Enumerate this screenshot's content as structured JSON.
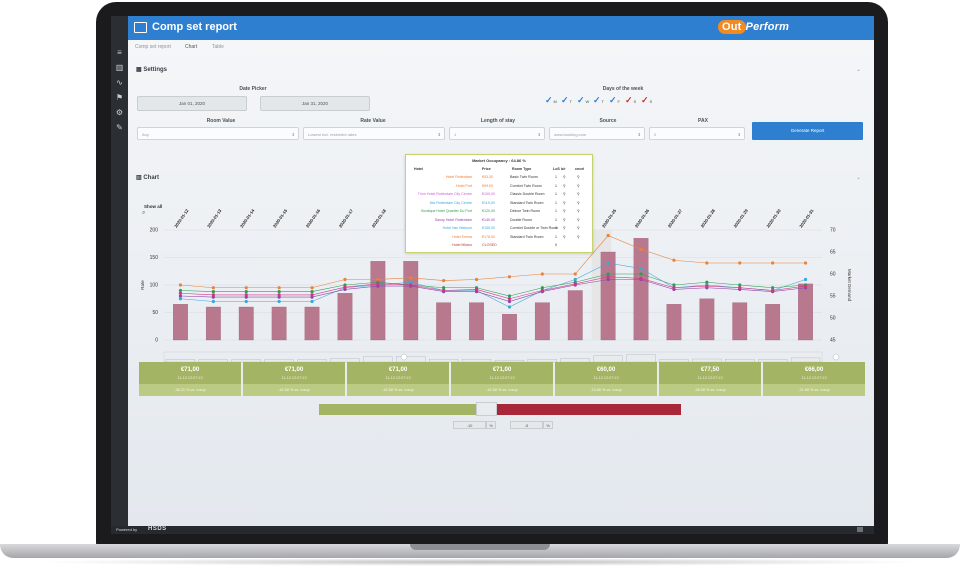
{
  "app": {
    "title": "Comp set report"
  },
  "tabs": [
    "Comp set report",
    "Chart",
    "Table"
  ],
  "settings": {
    "header": "Settings",
    "date_picker": {
      "label": "Date Picker",
      "from": "Jan 01, 2020",
      "to": "Jan 31, 2020"
    },
    "days_of_week": {
      "label": "Days of the week",
      "days": [
        {
          "letter": "M",
          "checked": true,
          "color": "#2f7fd1"
        },
        {
          "letter": "T",
          "checked": true,
          "color": "#2f7fd1"
        },
        {
          "letter": "W",
          "checked": true,
          "color": "#2f7fd1"
        },
        {
          "letter": "T",
          "checked": true,
          "color": "#2f7fd1"
        },
        {
          "letter": "F",
          "checked": true,
          "color": "#2f7fd1"
        },
        {
          "letter": "S",
          "checked": true,
          "color": "#c0392b"
        },
        {
          "letter": "S",
          "checked": true,
          "color": "#c0392b"
        }
      ]
    },
    "room_value": {
      "label": "Room Value",
      "value": "Any"
    },
    "rate_value": {
      "label": "Rate Value",
      "value": "Lowest incl. restricted rates"
    },
    "length_of_stay": {
      "label": "Length of stay",
      "value": "1"
    },
    "source": {
      "label": "Source",
      "value": "www.booking.com"
    },
    "pax": {
      "label": "PAX",
      "value": "2"
    },
    "generate_label": "Generate Report"
  },
  "chart": {
    "header": "Chart",
    "show_all": "Show all",
    "ylabel_left": "Rate",
    "ylabel_right": "Market Demand",
    "yticks_left": [
      "200",
      "150",
      "100",
      "50",
      "0"
    ],
    "yticks_right": [
      "70",
      "65",
      "60",
      "55",
      "50",
      "45"
    ]
  },
  "chart_data": {
    "type": "bar",
    "categories": [
      "2020-01-12",
      "2020-01-13",
      "2020-01-14",
      "2020-01-15",
      "2020-01-16",
      "2020-01-17",
      "2020-01-18",
      "2020-01-19",
      "2020-01-20",
      "2020-01-21",
      "2020-01-22",
      "2020-01-23",
      "2020-01-24",
      "2020-01-25",
      "2020-01-26",
      "2020-01-27",
      "2020-01-28",
      "2020-01-29",
      "2020-01-30",
      "2020-01-31"
    ],
    "ylim": [
      0,
      200
    ],
    "y2lim": [
      45,
      70
    ],
    "series": [
      {
        "values": [
          65,
          60,
          60,
          60,
          60,
          85,
          143,
          143,
          68,
          68,
          47,
          68,
          90,
          160,
          185,
          65,
          75,
          68,
          65,
          102
        ],
        "color": "#b8798f"
      },
      {
        "values": [
          100,
          95,
          95,
          95,
          95,
          110,
          110,
          113,
          108,
          110,
          115,
          120,
          120,
          190,
          165,
          145,
          140,
          140,
          140,
          140
        ],
        "color": "#e9823b"
      },
      {
        "values": [
          75,
          70,
          70,
          70,
          70,
          95,
          100,
          105,
          90,
          90,
          60,
          90,
          110,
          140,
          130,
          95,
          100,
          95,
          90,
          110
        ],
        "color": "#3aa8d8"
      },
      {
        "values": [
          90,
          88,
          88,
          88,
          88,
          100,
          105,
          100,
          95,
          95,
          80,
          95,
          105,
          120,
          120,
          100,
          105,
          100,
          95,
          100
        ],
        "color": "#2f9e55"
      },
      {
        "values": [
          80,
          78,
          78,
          78,
          78,
          92,
          98,
          98,
          88,
          88,
          70,
          88,
          100,
          110,
          110,
          92,
          95,
          92,
          88,
          95
        ],
        "color": "#8e44ad"
      },
      {
        "values": [
          85,
          82,
          82,
          82,
          82,
          96,
          102,
          100,
          90,
          92,
          75,
          90,
          102,
          115,
          112,
          95,
          98,
          95,
          90,
          98
        ],
        "color": "#d63384"
      }
    ]
  },
  "tooltip": {
    "title": "Market Occupancy : 64.86 %",
    "headers": [
      "Hotel",
      "Price",
      "Room Type",
      "LoS",
      "b/r",
      "cncel"
    ],
    "rows": [
      {
        "hotel": "Hotel Rotterdam",
        "price": "€93,00",
        "room": "Basic Twin Room",
        "los": "1",
        "color": "#e9823b"
      },
      {
        "hotel": "Hotel Port",
        "price": "€99,00",
        "room": "Comfort Twin Room",
        "los": "1",
        "color": "#e9823b"
      },
      {
        "hotel": "Thon Hotel Rotterdam City Centre",
        "price": "€109,00",
        "room": "Classic Double Room",
        "los": "1",
        "color": "#c95fd6"
      },
      {
        "hotel": "Ibis Rotterdam City Centre",
        "price": "€119,00",
        "room": "Standard Twin Room",
        "los": "1",
        "color": "#3aa8d8"
      },
      {
        "hotel": "Boutique Hotel Quartier Du Port",
        "price": "€120,00",
        "room": "Deluxe Twin Room",
        "los": "1",
        "color": "#2f9e55"
      },
      {
        "hotel": "Savoy Hotel Rotterdam",
        "price": "€140,00",
        "room": "Double Room",
        "los": "1",
        "color": "#8e44ad"
      },
      {
        "hotel": "Hotel Van Walsum",
        "price": "€155,00",
        "room": "Comfort Double or Twin Room",
        "los": "1",
        "color": "#3aa8d8"
      },
      {
        "hotel": "Hotel Emma",
        "price": "€178,00",
        "room": "Standard Twin Room",
        "los": "1",
        "color": "#e9823b"
      },
      {
        "hotel": "Hotel Milano",
        "price": "CLOSED",
        "room": "",
        "los": "0",
        "color": "#c0392b"
      }
    ]
  },
  "cards": [
    {
      "price": "€71,00",
      "ts": "11-13 12:07:13",
      "cmp": "-38.21 % vs. comp"
    },
    {
      "price": "€71,00",
      "ts": "11-13 12:07:13",
      "cmp": "-42.58 % vs. comp"
    },
    {
      "price": "€71,00",
      "ts": "11-13 12:07:13",
      "cmp": "-42.58 % vs. comp"
    },
    {
      "price": "€71,00",
      "ts": "11-13 12:07:13",
      "cmp": "-42.58 % vs. comp"
    },
    {
      "price": "€60,00",
      "ts": "11-13 12:07:13",
      "cmp": "-15.66 % vs. comp"
    },
    {
      "price": "€77,50",
      "ts": "11-13 12:07:13",
      "cmp": "-28.58 % vs. comp"
    },
    {
      "price": "€66,00",
      "ts": "11-13 12:07:13",
      "cmp": "-31.98 % vs. comp"
    }
  ],
  "thresholds": {
    "low": "-10",
    "high": "-5",
    "unit": "%"
  },
  "footer": {
    "powered": "Powered by",
    "brand": "HSDS"
  }
}
